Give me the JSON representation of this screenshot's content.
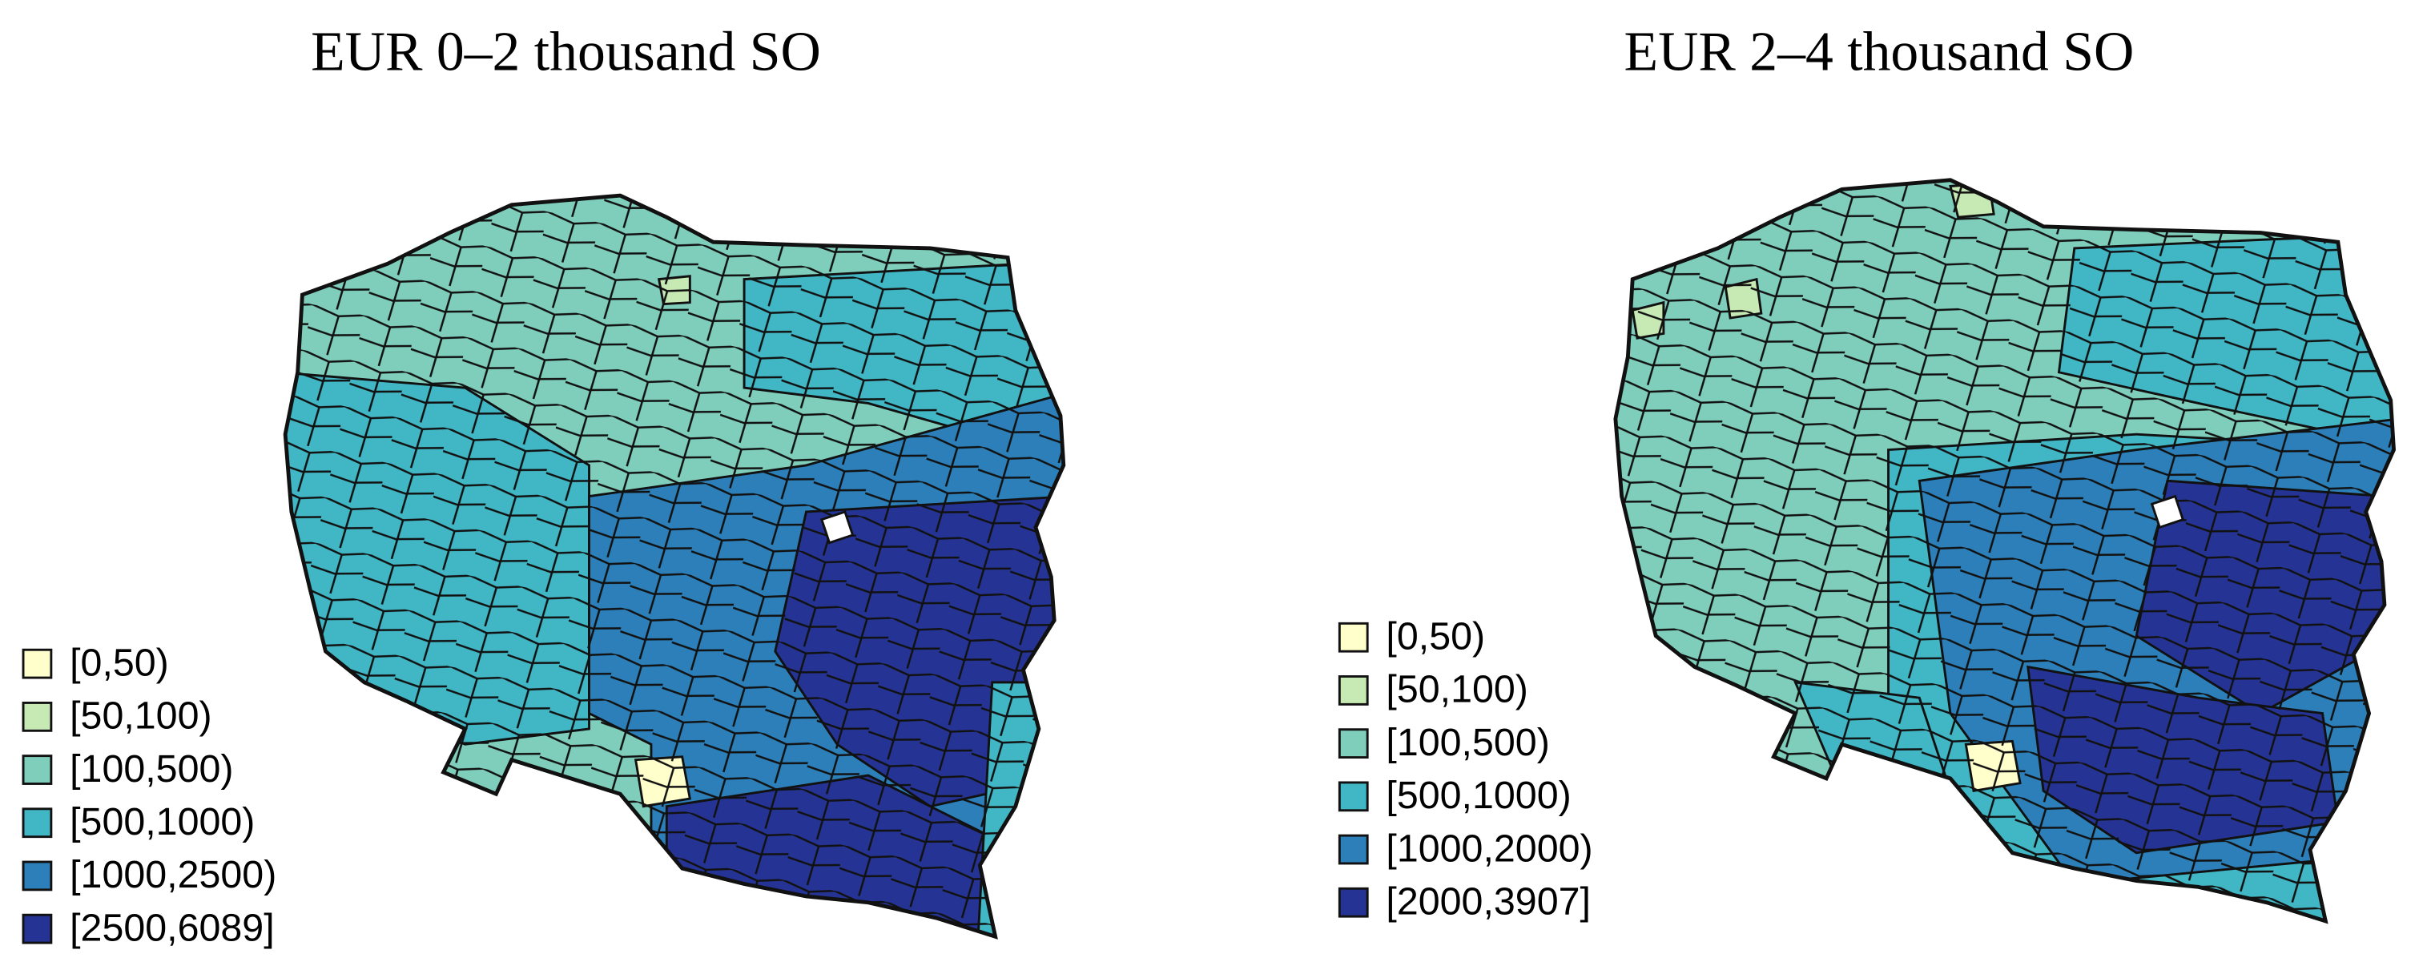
{
  "maps": [
    {
      "title": "EUR 0–2 thousand SO",
      "legend": [
        {
          "label": "[0,50)",
          "color": "#ffffcc"
        },
        {
          "label": "[50,100)",
          "color": "#c7e9b4"
        },
        {
          "label": "[100,500)",
          "color": "#7fcdbb"
        },
        {
          "label": "[500,1000)",
          "color": "#41b6c4"
        },
        {
          "label": "[1000,2500)",
          "color": "#2c7fb8"
        },
        {
          "label": "[2500,6089]",
          "color": "#253494"
        }
      ]
    },
    {
      "title": "EUR 2–4 thousand SO",
      "legend": [
        {
          "label": "[0,50)",
          "color": "#ffffcc"
        },
        {
          "label": "[50,100)",
          "color": "#c7e9b4"
        },
        {
          "label": "[100,500)",
          "color": "#7fcdbb"
        },
        {
          "label": "[500,1000)",
          "color": "#41b6c4"
        },
        {
          "label": "[1000,2000)",
          "color": "#2c7fb8"
        },
        {
          "label": "[2000,3907]",
          "color": "#253494"
        }
      ]
    }
  ]
}
